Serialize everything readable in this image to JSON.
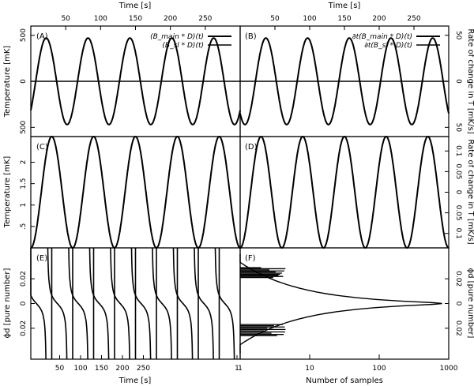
{
  "chart_data": [
    {
      "id": "A",
      "type": "line",
      "panel_label": "(A)",
      "ylabel": "Temperature [mK]",
      "xlabel_top": "Time [s]",
      "xlim": [
        0,
        300
      ],
      "ylim": [
        -600,
        600
      ],
      "xticks": [
        "50",
        "100",
        "150",
        "200",
        "250"
      ],
      "yticks_right": [
        "500",
        "0",
        "500"
      ],
      "yticks": [
        "500",
        "0",
        "500"
      ],
      "series": [
        {
          "name": "(B_main * D)(t)",
          "kind": "sine",
          "amplitude": 470,
          "period_s": 60,
          "phase_s": 7,
          "offset": 0
        },
        {
          "name": "(B_sl * D)(t)",
          "kind": "flat",
          "offset": 0
        }
      ],
      "legend": [
        "(B_main * D)(t)",
        "(B_sl * D)(t)"
      ]
    },
    {
      "id": "B",
      "type": "line",
      "panel_label": "(B)",
      "ylabel_right": "Rate of change in T [mK/s]",
      "xlabel_top": "Time [s]",
      "xlim": [
        0,
        300
      ],
      "ylim": [
        -60,
        60
      ],
      "xticks": [
        "50",
        "100",
        "150",
        "200",
        "250"
      ],
      "yticks_right": [
        "50",
        "0",
        "50"
      ],
      "series": [
        {
          "name": "∂t(B_main * D)(t)",
          "kind": "sine",
          "amplitude": 47,
          "period_s": 60,
          "phase_s": 22,
          "offset": 0
        },
        {
          "name": "∂t(B_sl * D)(t)",
          "kind": "flat",
          "offset": 0
        }
      ],
      "legend": [
        "∂t(B_main * D)(t)",
        "∂t(B_sl * D)(t)"
      ]
    },
    {
      "id": "C",
      "type": "line",
      "panel_label": "(C)",
      "ylabel": "Temperature [mK]",
      "xlim": [
        0,
        300
      ],
      "ylim": [
        0,
        2.6
      ],
      "yticks": [
        "2",
        "1.5",
        "1",
        ".5"
      ],
      "series": [
        {
          "name": "",
          "kind": "sine",
          "amplitude": 1.3,
          "period_s": 60,
          "phase_s": 15,
          "offset": 1.3
        }
      ]
    },
    {
      "id": "D",
      "type": "line",
      "panel_label": "(D)",
      "ylabel_right": "Rate of change in T [mK/s]",
      "xlim": [
        0,
        300
      ],
      "ylim": [
        -0.135,
        0.135
      ],
      "yticks_right": [
        "0.1",
        "0.05",
        "0",
        "0.05",
        "0.1"
      ],
      "series": [
        {
          "name": "",
          "kind": "sine",
          "amplitude": 0.135,
          "period_s": 60,
          "phase_s": 15,
          "offset": 0
        }
      ]
    },
    {
      "id": "E",
      "type": "line",
      "panel_label": "(E)",
      "ylabel": "ϕd [pure number]",
      "xlabel": "Time [s]",
      "xlim": [
        0,
        300
      ],
      "ylim": [
        -0.045,
        0.045
      ],
      "xticks": [
        "50",
        "100",
        "150",
        "200",
        "250",
        "1"
      ],
      "yticks": [
        "0.02",
        "0",
        "0.02"
      ],
      "series": [
        {
          "name": "",
          "kind": "phase_steps",
          "crossings_s": [
            8,
            38,
            68,
            98,
            128,
            158,
            188,
            218,
            248,
            278
          ],
          "spike_s": [
            30,
            60,
            90,
            120,
            150,
            180,
            210,
            240,
            270
          ]
        }
      ]
    },
    {
      "id": "F",
      "type": "line",
      "panel_label": "(F)",
      "xlabel": "Number of samples",
      "ylabel_right": "ϕd [pure number]",
      "xscale": "log",
      "xlim": [
        1,
        1000
      ],
      "ylim": [
        -0.045,
        0.045
      ],
      "xticks": [
        "1",
        "10",
        "100",
        "1000"
      ],
      "yticks_right": [
        "0.02",
        "0",
        "0.02"
      ],
      "series": [
        {
          "name": "",
          "kind": "histogram",
          "peak_samples": 800
        }
      ]
    }
  ]
}
